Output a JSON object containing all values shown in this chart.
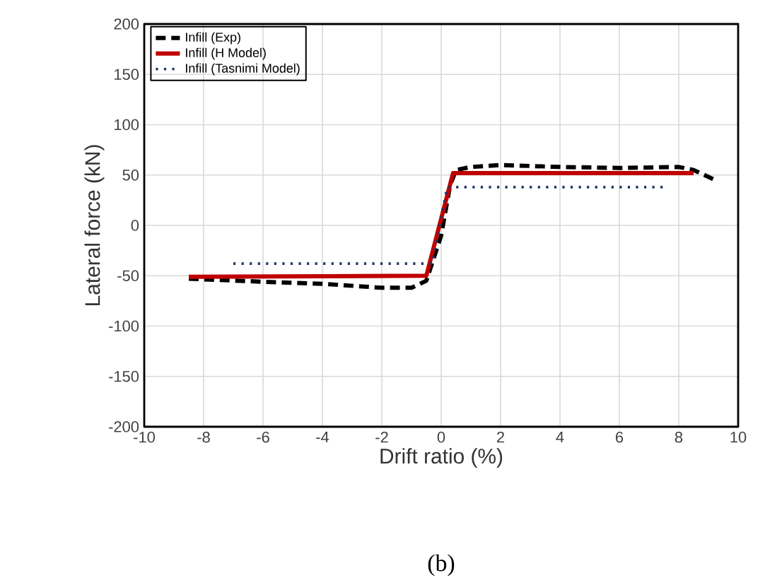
{
  "chart_data": {
    "type": "line",
    "xlabel": "Drift ratio (%)",
    "ylabel": "Lateral force (kN)",
    "annotations": [
      "(b)"
    ],
    "xlim": [
      -10,
      10
    ],
    "xticks": [
      -10,
      -8,
      -6,
      -4,
      -2,
      0,
      2,
      4,
      6,
      8,
      10
    ],
    "ylim": [
      -200,
      200
    ],
    "yticks": [
      -200,
      -150,
      -100,
      -50,
      0,
      50,
      100,
      150,
      200
    ],
    "grid": true,
    "legend": "top left",
    "marker": "none",
    "series": [
      {
        "name": "Infill (Exp)",
        "color": "#000000",
        "line_style": "dashed",
        "x": [
          -8.5,
          -6,
          -4,
          -2,
          -1,
          -0.5,
          0,
          0.3,
          0.5,
          1,
          2,
          4,
          6,
          8,
          8.5,
          9.3
        ],
        "values": [
          -53,
          -56,
          -58,
          -62,
          -62,
          -55,
          -10,
          40,
          55,
          58,
          60,
          58,
          57,
          58,
          55,
          44
        ]
      },
      {
        "name": "Infill (H Model)",
        "color": "#c00000",
        "line_style": "solid",
        "x": [
          -8.5,
          -0.5,
          0.4,
          8.5
        ],
        "values": [
          -51,
          -50,
          52,
          52
        ]
      },
      {
        "name": "Infill (Tasnimi Model)",
        "color": "#1f3864",
        "line_style": "dotted",
        "x": [
          -7,
          -0.3,
          0.2,
          7.5
        ],
        "values": [
          -38,
          -38,
          38,
          38
        ]
      }
    ]
  }
}
